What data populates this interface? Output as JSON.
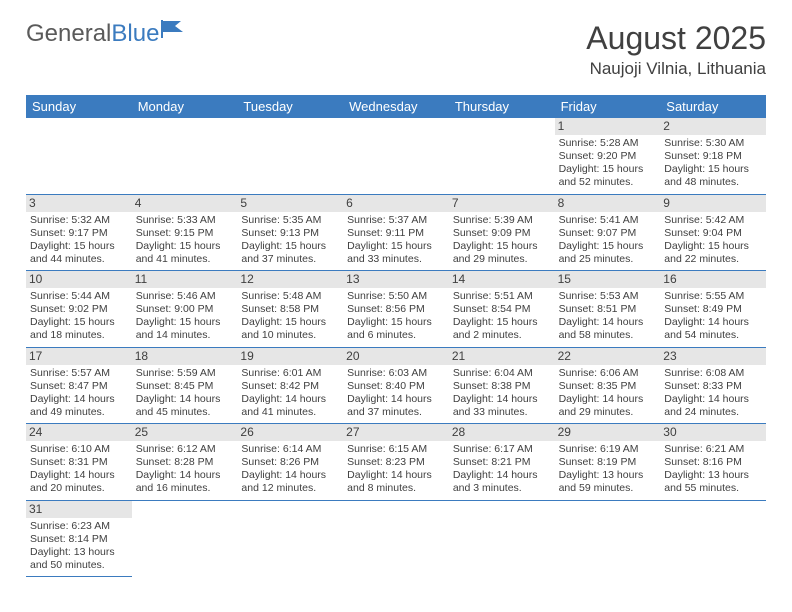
{
  "logo": {
    "part1": "General",
    "part2": "Blue"
  },
  "title": "August 2025",
  "location": "Naujoji Vilnia, Lithuania",
  "colors": {
    "header_bg": "#3b7bbf",
    "header_text": "#ffffff",
    "daynum_bg": "#e6e6e6",
    "text": "#404040",
    "border": "#3b7bbf"
  },
  "day_headers": [
    "Sunday",
    "Monday",
    "Tuesday",
    "Wednesday",
    "Thursday",
    "Friday",
    "Saturday"
  ],
  "weeks": [
    [
      {
        "n": "",
        "empty": true
      },
      {
        "n": "",
        "empty": true
      },
      {
        "n": "",
        "empty": true
      },
      {
        "n": "",
        "empty": true
      },
      {
        "n": "",
        "empty": true
      },
      {
        "n": "1",
        "sr": "Sunrise: 5:28 AM",
        "ss": "Sunset: 9:20 PM",
        "d1": "Daylight: 15 hours",
        "d2": "and 52 minutes."
      },
      {
        "n": "2",
        "sr": "Sunrise: 5:30 AM",
        "ss": "Sunset: 9:18 PM",
        "d1": "Daylight: 15 hours",
        "d2": "and 48 minutes."
      }
    ],
    [
      {
        "n": "3",
        "sr": "Sunrise: 5:32 AM",
        "ss": "Sunset: 9:17 PM",
        "d1": "Daylight: 15 hours",
        "d2": "and 44 minutes."
      },
      {
        "n": "4",
        "sr": "Sunrise: 5:33 AM",
        "ss": "Sunset: 9:15 PM",
        "d1": "Daylight: 15 hours",
        "d2": "and 41 minutes."
      },
      {
        "n": "5",
        "sr": "Sunrise: 5:35 AM",
        "ss": "Sunset: 9:13 PM",
        "d1": "Daylight: 15 hours",
        "d2": "and 37 minutes."
      },
      {
        "n": "6",
        "sr": "Sunrise: 5:37 AM",
        "ss": "Sunset: 9:11 PM",
        "d1": "Daylight: 15 hours",
        "d2": "and 33 minutes."
      },
      {
        "n": "7",
        "sr": "Sunrise: 5:39 AM",
        "ss": "Sunset: 9:09 PM",
        "d1": "Daylight: 15 hours",
        "d2": "and 29 minutes."
      },
      {
        "n": "8",
        "sr": "Sunrise: 5:41 AM",
        "ss": "Sunset: 9:07 PM",
        "d1": "Daylight: 15 hours",
        "d2": "and 25 minutes."
      },
      {
        "n": "9",
        "sr": "Sunrise: 5:42 AM",
        "ss": "Sunset: 9:04 PM",
        "d1": "Daylight: 15 hours",
        "d2": "and 22 minutes."
      }
    ],
    [
      {
        "n": "10",
        "sr": "Sunrise: 5:44 AM",
        "ss": "Sunset: 9:02 PM",
        "d1": "Daylight: 15 hours",
        "d2": "and 18 minutes."
      },
      {
        "n": "11",
        "sr": "Sunrise: 5:46 AM",
        "ss": "Sunset: 9:00 PM",
        "d1": "Daylight: 15 hours",
        "d2": "and 14 minutes."
      },
      {
        "n": "12",
        "sr": "Sunrise: 5:48 AM",
        "ss": "Sunset: 8:58 PM",
        "d1": "Daylight: 15 hours",
        "d2": "and 10 minutes."
      },
      {
        "n": "13",
        "sr": "Sunrise: 5:50 AM",
        "ss": "Sunset: 8:56 PM",
        "d1": "Daylight: 15 hours",
        "d2": "and 6 minutes."
      },
      {
        "n": "14",
        "sr": "Sunrise: 5:51 AM",
        "ss": "Sunset: 8:54 PM",
        "d1": "Daylight: 15 hours",
        "d2": "and 2 minutes."
      },
      {
        "n": "15",
        "sr": "Sunrise: 5:53 AM",
        "ss": "Sunset: 8:51 PM",
        "d1": "Daylight: 14 hours",
        "d2": "and 58 minutes."
      },
      {
        "n": "16",
        "sr": "Sunrise: 5:55 AM",
        "ss": "Sunset: 8:49 PM",
        "d1": "Daylight: 14 hours",
        "d2": "and 54 minutes."
      }
    ],
    [
      {
        "n": "17",
        "sr": "Sunrise: 5:57 AM",
        "ss": "Sunset: 8:47 PM",
        "d1": "Daylight: 14 hours",
        "d2": "and 49 minutes."
      },
      {
        "n": "18",
        "sr": "Sunrise: 5:59 AM",
        "ss": "Sunset: 8:45 PM",
        "d1": "Daylight: 14 hours",
        "d2": "and 45 minutes."
      },
      {
        "n": "19",
        "sr": "Sunrise: 6:01 AM",
        "ss": "Sunset: 8:42 PM",
        "d1": "Daylight: 14 hours",
        "d2": "and 41 minutes."
      },
      {
        "n": "20",
        "sr": "Sunrise: 6:03 AM",
        "ss": "Sunset: 8:40 PM",
        "d1": "Daylight: 14 hours",
        "d2": "and 37 minutes."
      },
      {
        "n": "21",
        "sr": "Sunrise: 6:04 AM",
        "ss": "Sunset: 8:38 PM",
        "d1": "Daylight: 14 hours",
        "d2": "and 33 minutes."
      },
      {
        "n": "22",
        "sr": "Sunrise: 6:06 AM",
        "ss": "Sunset: 8:35 PM",
        "d1": "Daylight: 14 hours",
        "d2": "and 29 minutes."
      },
      {
        "n": "23",
        "sr": "Sunrise: 6:08 AM",
        "ss": "Sunset: 8:33 PM",
        "d1": "Daylight: 14 hours",
        "d2": "and 24 minutes."
      }
    ],
    [
      {
        "n": "24",
        "sr": "Sunrise: 6:10 AM",
        "ss": "Sunset: 8:31 PM",
        "d1": "Daylight: 14 hours",
        "d2": "and 20 minutes."
      },
      {
        "n": "25",
        "sr": "Sunrise: 6:12 AM",
        "ss": "Sunset: 8:28 PM",
        "d1": "Daylight: 14 hours",
        "d2": "and 16 minutes."
      },
      {
        "n": "26",
        "sr": "Sunrise: 6:14 AM",
        "ss": "Sunset: 8:26 PM",
        "d1": "Daylight: 14 hours",
        "d2": "and 12 minutes."
      },
      {
        "n": "27",
        "sr": "Sunrise: 6:15 AM",
        "ss": "Sunset: 8:23 PM",
        "d1": "Daylight: 14 hours",
        "d2": "and 8 minutes."
      },
      {
        "n": "28",
        "sr": "Sunrise: 6:17 AM",
        "ss": "Sunset: 8:21 PM",
        "d1": "Daylight: 14 hours",
        "d2": "and 3 minutes."
      },
      {
        "n": "29",
        "sr": "Sunrise: 6:19 AM",
        "ss": "Sunset: 8:19 PM",
        "d1": "Daylight: 13 hours",
        "d2": "and 59 minutes."
      },
      {
        "n": "30",
        "sr": "Sunrise: 6:21 AM",
        "ss": "Sunset: 8:16 PM",
        "d1": "Daylight: 13 hours",
        "d2": "and 55 minutes."
      }
    ],
    [
      {
        "n": "31",
        "sr": "Sunrise: 6:23 AM",
        "ss": "Sunset: 8:14 PM",
        "d1": "Daylight: 13 hours",
        "d2": "and 50 minutes."
      },
      {
        "n": "",
        "empty": true
      },
      {
        "n": "",
        "empty": true
      },
      {
        "n": "",
        "empty": true
      },
      {
        "n": "",
        "empty": true
      },
      {
        "n": "",
        "empty": true
      },
      {
        "n": "",
        "empty": true
      }
    ]
  ]
}
